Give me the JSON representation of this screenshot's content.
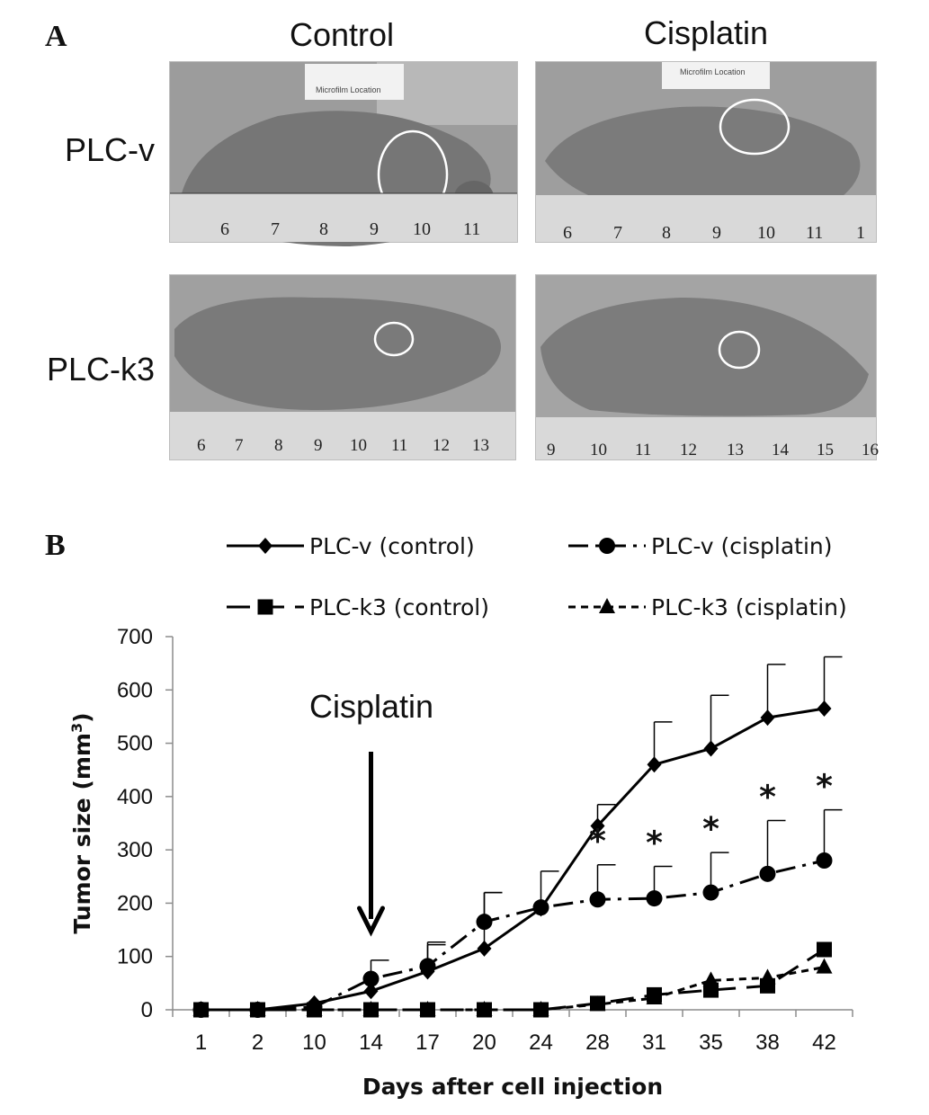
{
  "panelA": {
    "letter": "A",
    "columns": [
      "Control",
      "Cisplatin"
    ],
    "rows": [
      "PLC-v",
      "PLC-k3"
    ],
    "photo_labels": {
      "card_control_v": "Microfilm Location",
      "card_cis_v": "Microfilm Location"
    },
    "rulers": {
      "control_v": [
        "6",
        "7",
        "8",
        "9",
        "10",
        "11"
      ],
      "cis_v": [
        "6",
        "7",
        "8",
        "9",
        "10",
        "11",
        "1"
      ],
      "control_k3": [
        "6",
        "7",
        "8",
        "9",
        "10",
        "11",
        "12",
        "13"
      ],
      "cis_k3": [
        "9",
        "10",
        "11",
        "12",
        "13",
        "14",
        "15",
        "16"
      ]
    }
  },
  "panelB": {
    "letter": "B",
    "annotation": "Cisplatin",
    "significance": "*"
  },
  "chart_data": {
    "type": "line",
    "xlabel": "Days after cell injection",
    "ylabel": "Tumor size (mm",
    "ylabel_sup": "3",
    "ylabel_close": ")",
    "ylim": [
      0,
      700
    ],
    "yticks": [
      0,
      100,
      200,
      300,
      400,
      500,
      600,
      700
    ],
    "categories": [
      "1",
      "2",
      "10",
      "14",
      "17",
      "20",
      "24",
      "28",
      "31",
      "35",
      "38",
      "42"
    ],
    "legend_position": "top",
    "series": [
      {
        "name": "PLC-v (control)",
        "marker": "diamond",
        "dash": "solid",
        "values": [
          0,
          0,
          12,
          35,
          72,
          115,
          190,
          345,
          460,
          490,
          548,
          565
        ],
        "error": [
          0,
          0,
          0,
          0,
          50,
          105,
          70,
          40,
          80,
          100,
          100,
          97
        ]
      },
      {
        "name": "PLC-v (cisplatin)",
        "marker": "circle",
        "dash": "dashdot",
        "values": [
          0,
          0,
          5,
          58,
          82,
          165,
          192,
          207,
          209,
          220,
          255,
          280
        ],
        "error": [
          0,
          0,
          0,
          35,
          45,
          55,
          0,
          65,
          60,
          75,
          100,
          95
        ]
      },
      {
        "name": "PLC-k3 (control)",
        "marker": "square",
        "dash": "longdash",
        "values": [
          0,
          0,
          0,
          0,
          0,
          0,
          0,
          12,
          28,
          37,
          45,
          113
        ],
        "error": [
          0,
          0,
          0,
          0,
          0,
          0,
          0,
          0,
          0,
          0,
          0,
          0
        ]
      },
      {
        "name": "PLC-k3 (cisplatin)",
        "marker": "triangle",
        "dash": "dashed",
        "values": [
          0,
          0,
          0,
          0,
          0,
          0,
          0,
          10,
          22,
          55,
          60,
          80
        ],
        "error": [
          0,
          0,
          0,
          0,
          0,
          0,
          0,
          0,
          0,
          0,
          0,
          0
        ]
      }
    ],
    "significant_days": [
      "28",
      "31",
      "35",
      "38",
      "42"
    ],
    "arrow_at": "14",
    "colors": {
      "line": "#000000",
      "axis": "#8c8c8c",
      "photo_bg": "#8a8a8a",
      "mouse": "#7d7d7d"
    }
  }
}
